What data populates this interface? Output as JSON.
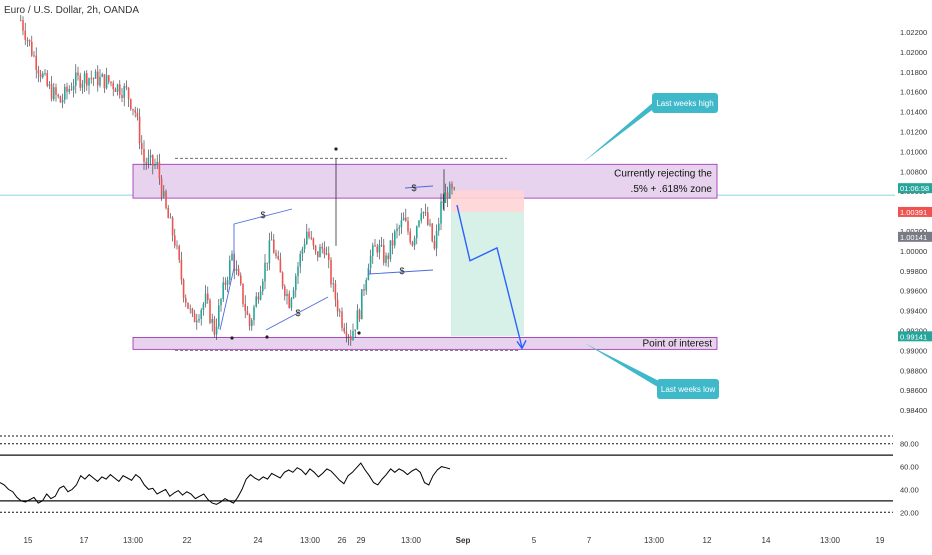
{
  "symbol_title": "Euro / U.S. Dollar, 2h, OANDA",
  "colors": {
    "bull": "#26a69a",
    "bear": "#ef5350",
    "wick": "#2a2e39",
    "zone_fill": "#e7d3ee",
    "zone_stroke": "#9c27b0",
    "callout": "#3fb8c9",
    "projection": "#2962ff",
    "price_line": "#5fc9d6",
    "rsi_line": "#000000",
    "axis_text": "#333333"
  },
  "chart_data": [
    {
      "type": "candlestick",
      "title": "Euro / U.S. Dollar, 2h, OANDA",
      "ylim": [
        0.982,
        1.024
      ],
      "y_ticks": [
        "1.02200",
        "1.02000",
        "1.01800",
        "1.01600",
        "1.01400",
        "1.01200",
        "1.01000",
        "1.00800",
        "1.00600",
        "1.00400",
        "1.00200",
        "1.00000",
        "0.99800",
        "0.99600",
        "0.99400",
        "0.99200",
        "0.99000",
        "0.98800",
        "0.98600",
        "0.98400"
      ],
      "x_ticks": [
        "15",
        "17",
        "13:00",
        "22",
        "24",
        "13:00",
        "26",
        "29",
        "13:00",
        "Sep",
        "5",
        "7",
        "13:00",
        "12",
        "14",
        "13:00",
        "19"
      ],
      "price_labels": [
        {
          "text": "01:06:58",
          "value": 1.0063,
          "color": "#26a69a"
        },
        {
          "text": "1.00391",
          "value": 1.00391,
          "color": "#ef5350"
        },
        {
          "text": "1.00141",
          "value": 1.00141,
          "color": "#787b86"
        },
        {
          "text": "0.99141",
          "value": 0.99141,
          "color": "#26a69a"
        }
      ],
      "last_price": 1.0056,
      "trend_anchors": [
        [
          0,
          1.0232
        ],
        [
          6,
          1.0195
        ],
        [
          12,
          1.0165
        ],
        [
          18,
          1.015
        ],
        [
          24,
          1.017
        ],
        [
          30,
          1.0175
        ],
        [
          40,
          1.017
        ],
        [
          48,
          1.016
        ],
        [
          52,
          1.014
        ],
        [
          56,
          1.009
        ],
        [
          62,
          1.0085
        ],
        [
          66,
          1.004
        ],
        [
          70,
          1.001
        ],
        [
          74,
          0.996
        ],
        [
          78,
          0.993
        ],
        [
          84,
          0.995
        ],
        [
          88,
          0.992
        ],
        [
          92,
          0.996
        ],
        [
          96,
          0.9995
        ],
        [
          100,
          0.996
        ],
        [
          104,
          0.9925
        ],
        [
          108,
          0.996
        ],
        [
          114,
          1.001
        ],
        [
          118,
          0.9975
        ],
        [
          122,
          0.995
        ],
        [
          126,
          0.9985
        ],
        [
          130,
          1.002
        ],
        [
          134,
          0.9995
        ],
        [
          138,
          1.0005
        ],
        [
          142,
          0.996
        ],
        [
          146,
          0.993
        ],
        [
          150,
          0.9915
        ],
        [
          154,
          0.994
        ],
        [
          158,
          0.999
        ],
        [
          162,
          1.0005
        ],
        [
          166,
          0.999
        ],
        [
          170,
          1.0015
        ],
        [
          174,
          1.003
        ],
        [
          178,
          1.001
        ],
        [
          182,
          1.0045
        ],
        [
          186,
          1.002
        ],
        [
          188,
          1.0
        ],
        [
          191,
          1.0045
        ],
        [
          194,
          1.006
        ],
        [
          197,
          1.0056
        ]
      ],
      "resistance_zone": {
        "top": 1.0087,
        "bottom": 1.0053
      },
      "resistance_text": [
        "Currently rejecting the",
        ".5% + .618% zone"
      ],
      "support_zone": {
        "top": 0.9913,
        "bottom": 0.9901
      },
      "support_text": "Point of interest",
      "highs_line": 1.0093,
      "lows_line": 0.99,
      "position": {
        "entry": 1.00391,
        "stop": 1.0061,
        "target": 0.99141
      },
      "projection_path": [
        [
          1.0046,
          0
        ],
        [
          0.999,
          1
        ],
        [
          1.0003,
          2
        ],
        [
          0.9903,
          3
        ]
      ],
      "callouts": [
        {
          "text": "Last weeks high",
          "target": 1.0088
        },
        {
          "text": "Last weeks low",
          "target": 0.9908
        }
      ],
      "markers": [
        "$",
        "$",
        "$",
        "$"
      ]
    },
    {
      "type": "line",
      "title": "",
      "ylim": [
        15,
        85
      ],
      "y_ticks": [
        "80.00",
        "60.00",
        "40.00",
        "20.00"
      ],
      "levels": [
        80,
        70,
        30,
        20
      ],
      "values": [
        46,
        44,
        40,
        38,
        33,
        30,
        29,
        31,
        33,
        28,
        30,
        36,
        32,
        34,
        41,
        43,
        38,
        40,
        44,
        52,
        49,
        53,
        50,
        47,
        51,
        49,
        53,
        50,
        47,
        52,
        50,
        48,
        53,
        50,
        44,
        40,
        41,
        36,
        38,
        40,
        34,
        37,
        39,
        35,
        38,
        36,
        32,
        34,
        36,
        31,
        28,
        27,
        29,
        32,
        30,
        28,
        33,
        40,
        49,
        53,
        50,
        48,
        51,
        49,
        54,
        52,
        50,
        55,
        57,
        55,
        59,
        57,
        53,
        58,
        55,
        51,
        54,
        58,
        56,
        52,
        48,
        45,
        52,
        55,
        59,
        63,
        57,
        52,
        46,
        44,
        49,
        53,
        58,
        55,
        58,
        56,
        53,
        56,
        58,
        55,
        46,
        44,
        52,
        57,
        60,
        59,
        58
      ]
    }
  ]
}
